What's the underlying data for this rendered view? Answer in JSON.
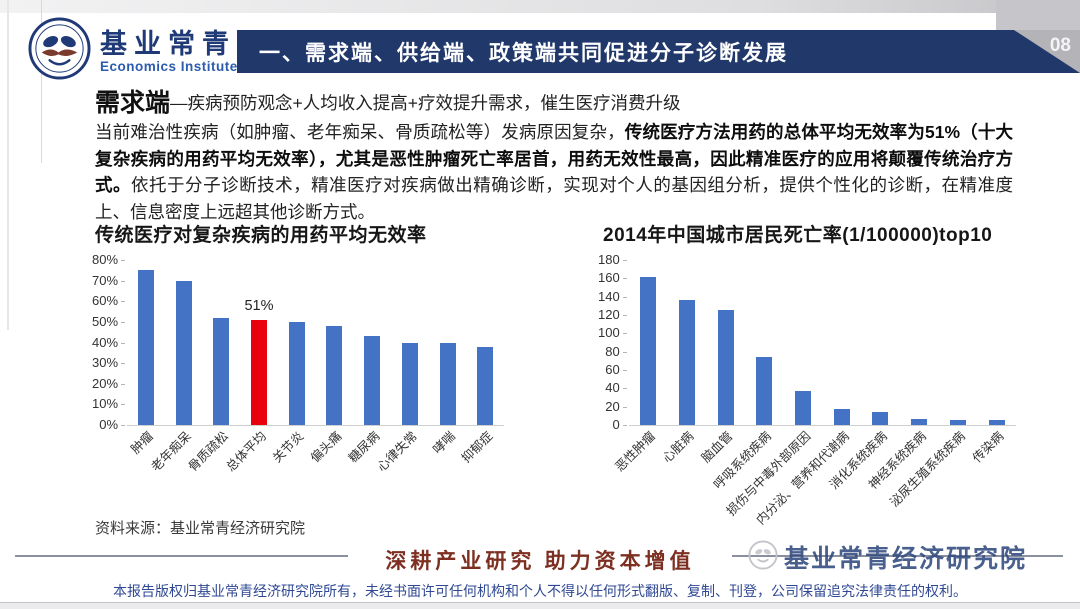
{
  "header": {
    "logo": {
      "title": "基业常青",
      "subtitle": "Economics Institute",
      "icon": "institute-seal-logo"
    },
    "banner_title": "一、需求端、供给端、政策端共同促进分子诊断发展",
    "page_number": "08"
  },
  "intro": {
    "lead_term": "需求端",
    "lead_rest": "—疾病预防观念+人均收入提高+疗效提升需求，催生医疗消费升级",
    "paragraph_segments": [
      {
        "text": "当前难治性疾病（如肿瘤、老年痴呆、骨质疏松等）发病原因复杂，",
        "bold": false
      },
      {
        "text": "传统医疗方法用药的总体平均无效率为51%（十大复杂疾病的用药平均无效率），尤其是恶性肿瘤死亡率居首，用药无效性最高，因此精准医疗的应用将颠覆传统治疗方式。",
        "bold": true
      },
      {
        "text": "依托于分子诊断技术，精准医疗对疾病做出精确诊断，实现对个人的基因组分析，提供个性化的诊断，在精准度上、信息密度上远超其他诊断方式。",
        "bold": false
      }
    ]
  },
  "chart_data": [
    {
      "type": "bar",
      "title": "传统医疗对复杂疾病的用药平均无效率",
      "categories": [
        "肿瘤",
        "老年痴呆",
        "骨质疏松",
        "总体平均",
        "关节炎",
        "偏头痛",
        "糖尿病",
        "心律失常",
        "哮喘",
        "抑郁症"
      ],
      "values": [
        75,
        70,
        52,
        51,
        50,
        48,
        43,
        40,
        40,
        38
      ],
      "ylim": [
        0,
        80
      ],
      "ytick_step": 10,
      "ytick_suffix": "%",
      "bar_color": "#4472C4",
      "highlight_index": 3,
      "highlight_color": "#E8000D",
      "data_labels": {
        "3": "51%"
      },
      "grid": false,
      "legend": null,
      "xlabel": "",
      "ylabel": ""
    },
    {
      "type": "bar",
      "title": "2014年中国城市居民死亡率(1/100000)top10",
      "categories": [
        "恶性肿瘤",
        "心脏病",
        "脑血管",
        "呼吸系统疾病",
        "损伤与中毒外部原因",
        "内分泌、营养和代谢病",
        "消化系统疾病",
        "神经系统疾病",
        "泌尿生殖系统疾病",
        "传染病"
      ],
      "values": [
        161,
        136,
        125,
        74,
        37,
        17,
        14,
        7,
        6,
        6
      ],
      "ylim": [
        0,
        180
      ],
      "ytick_step": 20,
      "ytick_suffix": "",
      "bar_color": "#4472C4",
      "highlight_index": null,
      "highlight_color": null,
      "data_labels": {},
      "grid": false,
      "legend": null,
      "xlabel": "",
      "ylabel": ""
    }
  ],
  "source_note": "资料来源：基业常青经济研究院",
  "footer": {
    "slogan": "深耕产业研究 助力资本增值",
    "brand": "基业常青经济研究院",
    "brand_logo_icon": "institute-seal-watermark",
    "disclaimer": "本报告版权归基业常青经济研究院所有，未经书面许可任何机构和个人不得以任何形式翻版、复制、刊登，公司保留追究法律责任的权利。"
  },
  "colors": {
    "banner_navy": "#21386B",
    "bar_blue": "#4472C4",
    "highlight_red": "#E8000D",
    "slogan_maroon": "#7D2F21",
    "brand_navy": "#31497F",
    "disclaimer_blue": "#2F4893"
  }
}
